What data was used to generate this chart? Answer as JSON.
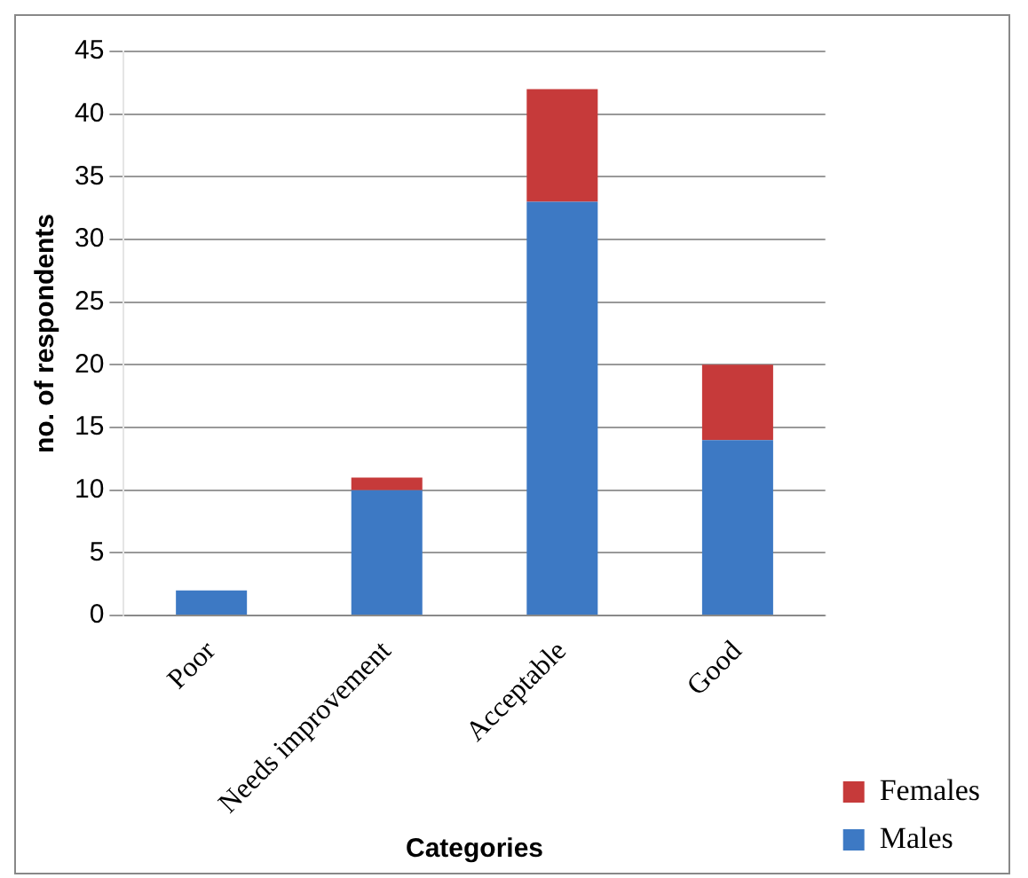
{
  "chart_data": {
    "type": "bar",
    "stacked": true,
    "xlabel": "Categories",
    "ylabel": "no. of respondents",
    "categories": [
      "Poor",
      "Needs improvement",
      "Acceptable",
      "Good"
    ],
    "series": [
      {
        "name": "Males",
        "color": "#3d79c4",
        "values": [
          2,
          10,
          33,
          14
        ]
      },
      {
        "name": "Females",
        "color": "#c63a3a",
        "values": [
          0,
          1,
          9,
          6
        ]
      }
    ],
    "ylim": [
      0,
      45
    ],
    "yticks": [
      0,
      5,
      10,
      15,
      20,
      25,
      30,
      35,
      40,
      45
    ],
    "grid": "y",
    "legend": "bottom right"
  }
}
